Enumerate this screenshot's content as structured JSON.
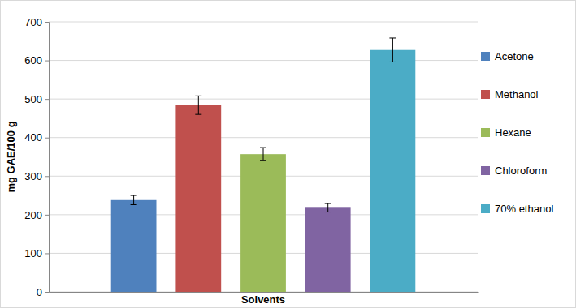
{
  "chart_data": {
    "type": "bar",
    "x_label": "Solvents",
    "y_label": "mg GAE/100 g",
    "categories": [
      null
    ],
    "series": [
      {
        "name": "Acetone",
        "color": "#4f81bd",
        "values": [
          238
        ],
        "errors": [
          12
        ]
      },
      {
        "name": "Methanol",
        "color": "#c0504d",
        "values": [
          484
        ],
        "errors": [
          24
        ]
      },
      {
        "name": "Hexane",
        "color": "#9bbb59",
        "values": [
          357
        ],
        "errors": [
          17
        ]
      },
      {
        "name": "Chloroform",
        "color": "#8064a2",
        "values": [
          218
        ],
        "errors": [
          11
        ]
      },
      {
        "name": "70% ethanol",
        "color": "#4bacc6",
        "values": [
          627
        ],
        "errors": [
          31
        ]
      }
    ],
    "ylim": [
      0,
      700
    ],
    "yticks": [
      0,
      100,
      200,
      300,
      400,
      500,
      600,
      700
    ],
    "grid": true,
    "legend": "right"
  }
}
